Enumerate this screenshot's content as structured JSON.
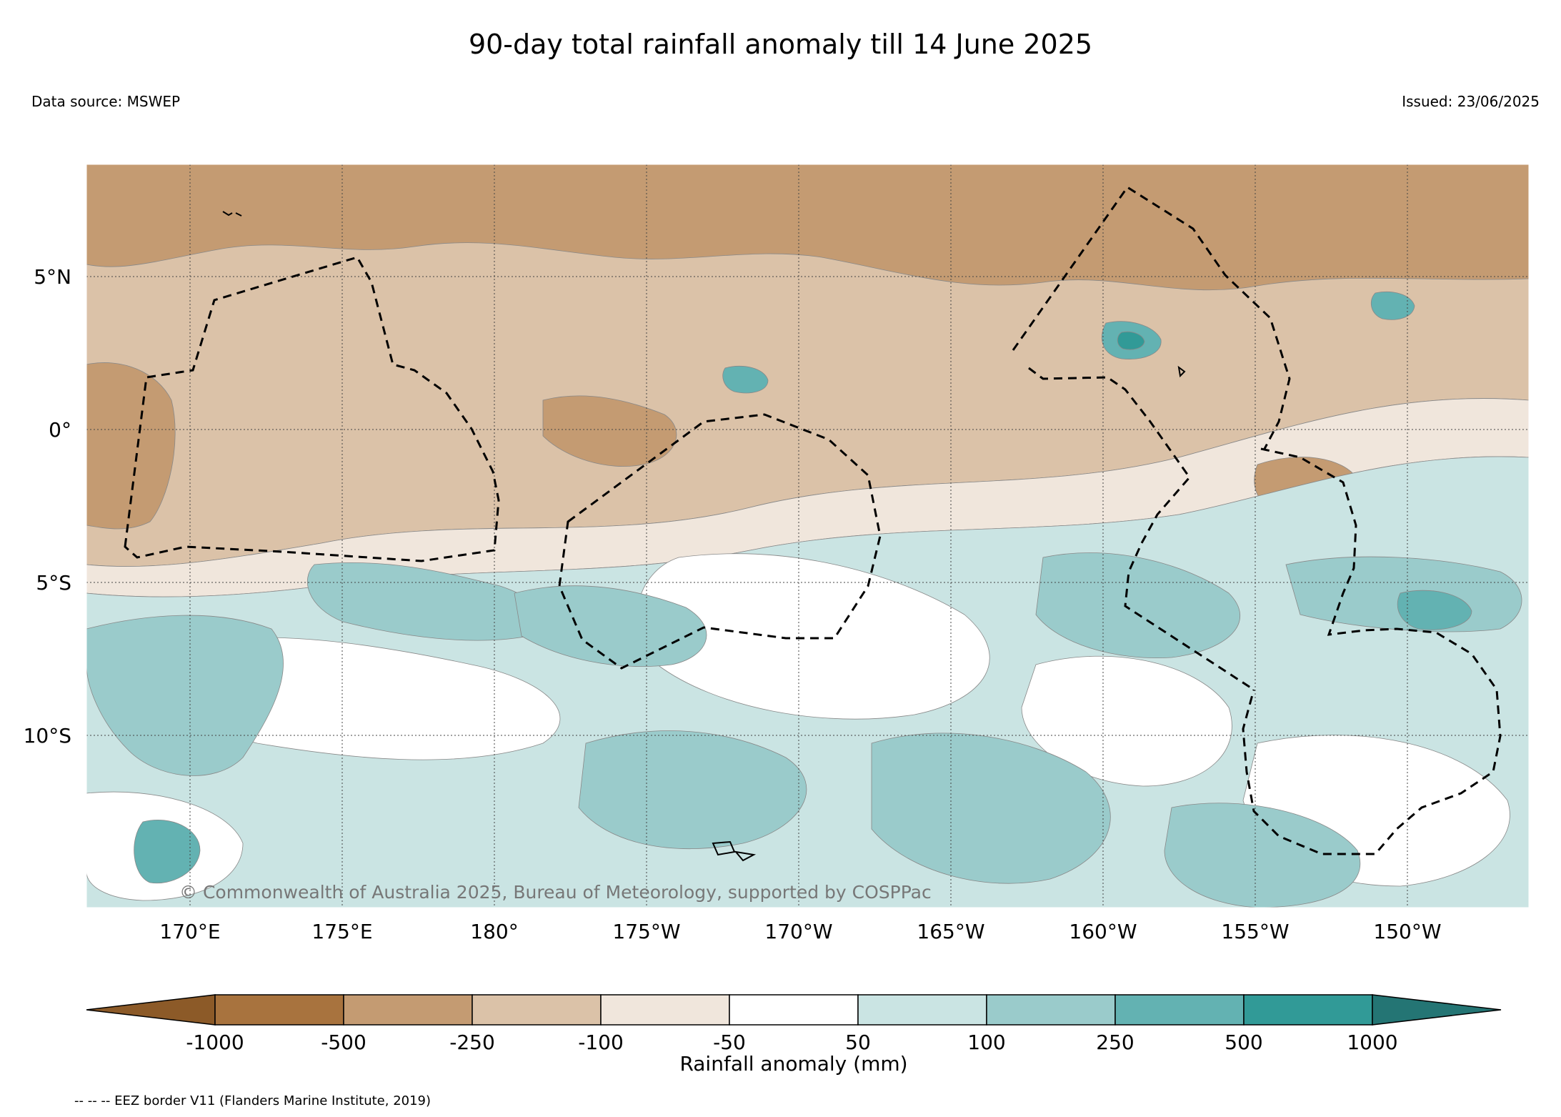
{
  "title": "90-day total rainfall anomaly till 14 June 2025",
  "data_source": "Data source: MSWEP",
  "issued": "Issued: 23/06/2025",
  "copyright": "© Commonwealth of Australia 2025, Bureau of Meteorology, supported by COSPPac",
  "colors": {
    "below_1000": "#8c5a28",
    "m1000_m500": "#a8733e",
    "m500_m250": "#c49b72",
    "m250_m100": "#dbc2a8",
    "m100_m50": "#f0e6dc",
    "m50_50": "#ffffff",
    "p50_100": "#cae4e3",
    "p100_250": "#9acbcb",
    "p250_500": "#63b2b2",
    "p500_1000": "#319a97",
    "above_1000": "#247574",
    "eez_border": "#000000"
  },
  "axes": {
    "lat_labels": [
      "5°N",
      "0°",
      "5°S",
      "10°S"
    ],
    "lon_labels": [
      "170°E",
      "175°E",
      "180°",
      "175°W",
      "170°W",
      "165°W",
      "160°W",
      "155°W",
      "150°W"
    ]
  },
  "colorbar": {
    "title": "Rainfall anomaly (mm)",
    "tick_labels": [
      "-1000",
      "-500",
      "-250",
      "-100",
      "-50",
      "50",
      "100",
      "250",
      "500",
      "1000"
    ]
  },
  "legend_note": "-- -- -- EEZ border V11 (Flanders Marine Institute, 2019)"
}
